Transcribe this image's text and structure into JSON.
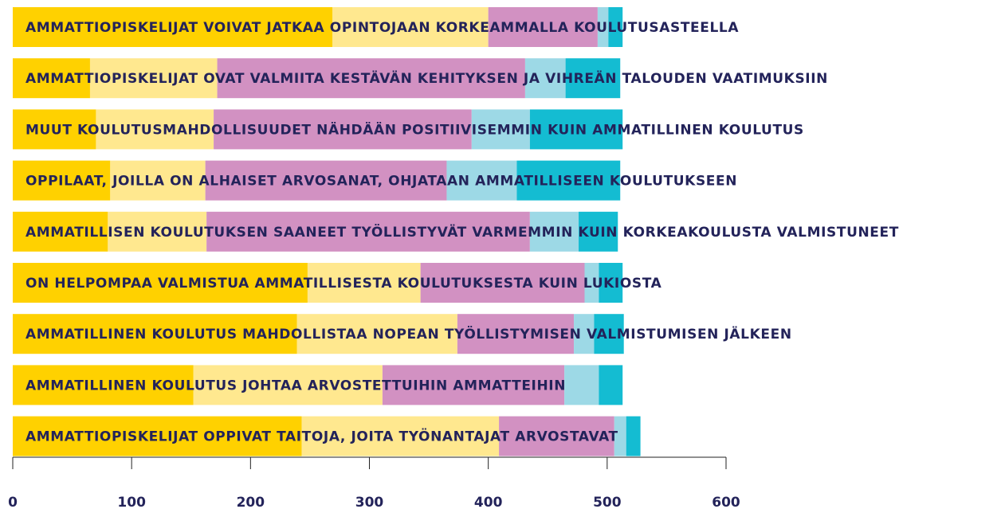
{
  "chart_data": {
    "type": "stacked-bar-horizontal",
    "categories": [
      "AMMATTIOPISKELIJAT VOIVAT JATKAA OPINTOJAAN KORKEAMMALLA KOULUTUSASTEELLA",
      "AMMATTIOPISKELIJAT OVAT VALMIITA KESTÄVÄN KEHITYKSEN JA VIHREÄN TALOUDEN VAATIMUKSIIN",
      "MUUT KOULUTUSMAHDOLLISUUDET NÄHDÄÄN POSITIIVISEMMIN KUIN AMMATILLINEN KOULUTUS",
      "OPPILAAT, JOILLA ON ALHAISET ARVOSANAT, OHJATAAN AMMATILLISEEN KOULUTUKSEEN",
      "AMMATILLISEN KOULUTUKSEN SAANEET TYÖLLISTYVÄT VARMEMMIN KUIN KORKEAKOULUSTA VALMISTUNEET",
      "ON HELPOMPAA VALMISTUA AMMATILLISESTA KOULUTUKSESTA KUIN LUKIOSTA",
      "AMMATILLINEN KOULUTUS MAHDOLLISTAA NOPEAN TYÖLLISTYMISEN VALMISTUMISEN JÄLKEEN",
      "AMMATILLINEN KOULUTUS JOHTAA ARVOSTETTUIHIN AMMATTEIHIN",
      "AMMATTIOPISKELIJAT OPPIVAT TAITOJA, JOITA TYÖNANTAJAT ARVOSTAVAT"
    ],
    "series": [
      {
        "color": "#ffd100",
        "values": [
          269,
          65,
          70,
          82,
          80,
          248,
          239,
          152,
          243
        ]
      },
      {
        "color": "#ffe88f",
        "values": [
          131,
          107,
          99,
          80,
          83,
          95,
          135,
          159,
          166
        ]
      },
      {
        "color": "#d291c2",
        "values": [
          92,
          259,
          217,
          203,
          272,
          138,
          98,
          153,
          97
        ]
      },
      {
        "color": "#9dd9e6",
        "values": [
          9,
          34,
          49,
          59,
          41,
          12,
          17,
          29,
          10
        ]
      },
      {
        "color": "#14bcd2",
        "values": [
          12,
          46,
          78,
          87,
          33,
          20,
          25,
          20,
          12
        ]
      }
    ],
    "xlim": [
      0,
      600
    ],
    "xticks": [
      0,
      100,
      200,
      300,
      400,
      500,
      600
    ]
  }
}
